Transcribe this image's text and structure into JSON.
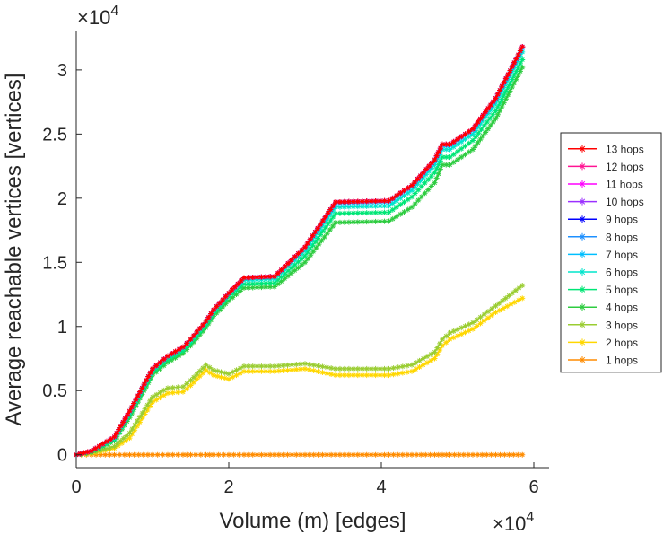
{
  "chart_data": {
    "type": "line",
    "title": "",
    "xlabel": "Volume (m) [edges]",
    "ylabel": "Average reachable vertices [vertices]",
    "xlim": [
      0,
      62000
    ],
    "ylim": [
      -1000,
      33000
    ],
    "xticks": [
      {
        "value": 0,
        "label": "0"
      },
      {
        "value": 20000,
        "label": "2"
      },
      {
        "value": 40000,
        "label": "4"
      },
      {
        "value": 60000,
        "label": "6"
      }
    ],
    "yticks": [
      {
        "value": 0,
        "label": "0"
      },
      {
        "value": 5000,
        "label": "0.5"
      },
      {
        "value": 10000,
        "label": "1"
      },
      {
        "value": 15000,
        "label": "1.5"
      },
      {
        "value": 20000,
        "label": "2"
      },
      {
        "value": 25000,
        "label": "2.5"
      },
      {
        "value": 30000,
        "label": "3"
      }
    ],
    "x_multiplier": {
      "base": "×10",
      "exponent": "4"
    },
    "y_multiplier": {
      "base": "×10",
      "exponent": "4"
    },
    "grid": false,
    "legend_position": "right",
    "marker": "asterisk",
    "x": [
      0,
      2000,
      5000,
      7000,
      10000,
      12000,
      14000,
      15000,
      17000,
      18000,
      20000,
      22000,
      26000,
      30000,
      34000,
      41000,
      44000,
      47000,
      48000,
      49000,
      52000,
      55000,
      58500
    ],
    "series": [
      {
        "name": "13 hops",
        "color": "#ff0000",
        "values": [
          0,
          300,
          1400,
          3400,
          6700,
          7700,
          8400,
          9000,
          10400,
          11300,
          12600,
          13800,
          13900,
          16200,
          19700,
          19800,
          21000,
          23000,
          24200,
          24200,
          25400,
          27800,
          31800
        ]
      },
      {
        "name": "12 hops",
        "color": "#ff1493",
        "values": [
          0,
          300,
          1400,
          3400,
          6700,
          7700,
          8400,
          9000,
          10400,
          11300,
          12600,
          13800,
          13900,
          16200,
          19700,
          19800,
          21000,
          23000,
          24200,
          24200,
          25400,
          27800,
          31800
        ]
      },
      {
        "name": "11 hops",
        "color": "#ff00ff",
        "values": [
          0,
          300,
          1400,
          3400,
          6700,
          7700,
          8400,
          9000,
          10400,
          11300,
          12600,
          13800,
          13900,
          16200,
          19700,
          19800,
          21000,
          23000,
          24200,
          24200,
          25400,
          27800,
          31800
        ]
      },
      {
        "name": "10 hops",
        "color": "#9b30ff",
        "values": [
          0,
          300,
          1400,
          3400,
          6700,
          7700,
          8400,
          9000,
          10400,
          11300,
          12600,
          13800,
          13900,
          16200,
          19700,
          19800,
          21000,
          23000,
          24200,
          24200,
          25400,
          27800,
          31800
        ]
      },
      {
        "name": "9 hops",
        "color": "#0000ff",
        "values": [
          0,
          300,
          1400,
          3400,
          6700,
          7700,
          8400,
          9000,
          10400,
          11300,
          12600,
          13800,
          13900,
          16200,
          19700,
          19800,
          21000,
          23000,
          24200,
          24200,
          25400,
          27800,
          31800
        ]
      },
      {
        "name": "8 hops",
        "color": "#1e90ff",
        "values": [
          0,
          300,
          1400,
          3400,
          6700,
          7700,
          8400,
          9000,
          10400,
          11300,
          12600,
          13800,
          13900,
          16200,
          19700,
          19800,
          21000,
          23000,
          24200,
          24200,
          25400,
          27800,
          31800
        ]
      },
      {
        "name": "7 hops",
        "color": "#00bfff",
        "values": [
          0,
          300,
          1400,
          3400,
          6700,
          7700,
          8400,
          9000,
          10400,
          11300,
          12600,
          13800,
          13900,
          16200,
          19600,
          19700,
          20900,
          22900,
          24100,
          24100,
          25300,
          27700,
          31700
        ]
      },
      {
        "name": "6 hops",
        "color": "#00e5cc",
        "values": [
          0,
          300,
          1300,
          3300,
          6600,
          7600,
          8300,
          8900,
          10300,
          11200,
          12500,
          13600,
          13700,
          15900,
          19300,
          19400,
          20600,
          22600,
          23800,
          23800,
          25000,
          27400,
          31400
        ]
      },
      {
        "name": "5 hops",
        "color": "#00e676",
        "values": [
          0,
          250,
          1200,
          3100,
          6400,
          7400,
          8100,
          8700,
          10100,
          11000,
          12300,
          13300,
          13400,
          15500,
          18800,
          18900,
          20100,
          22000,
          23200,
          23200,
          24500,
          26800,
          30800
        ]
      },
      {
        "name": "4 hops",
        "color": "#2ecc40",
        "values": [
          0,
          200,
          1100,
          2900,
          6200,
          7200,
          7900,
          8500,
          9900,
          10800,
          12000,
          13000,
          13100,
          15000,
          18100,
          18200,
          19300,
          21200,
          22600,
          22600,
          23800,
          26200,
          30200
        ]
      },
      {
        "name": "3 hops",
        "color": "#9acd32",
        "values": [
          0,
          150,
          650,
          1700,
          4500,
          5200,
          5300,
          5800,
          7000,
          6600,
          6300,
          6900,
          6900,
          7100,
          6700,
          6700,
          7000,
          8000,
          9000,
          9500,
          10300,
          11600,
          13200
        ]
      },
      {
        "name": "2 hops",
        "color": "#ffd700",
        "values": [
          0,
          100,
          500,
          1300,
          4100,
          4800,
          4900,
          5400,
          6600,
          6200,
          5900,
          6500,
          6500,
          6700,
          6200,
          6200,
          6500,
          7500,
          8500,
          9000,
          9800,
          11100,
          12200
        ]
      },
      {
        "name": "1 hops",
        "color": "#ff8c00",
        "values": [
          0,
          0,
          0,
          0,
          0,
          0,
          0,
          0,
          0,
          0,
          0,
          0,
          0,
          0,
          0,
          0,
          0,
          0,
          0,
          0,
          0,
          0,
          0
        ]
      }
    ]
  }
}
